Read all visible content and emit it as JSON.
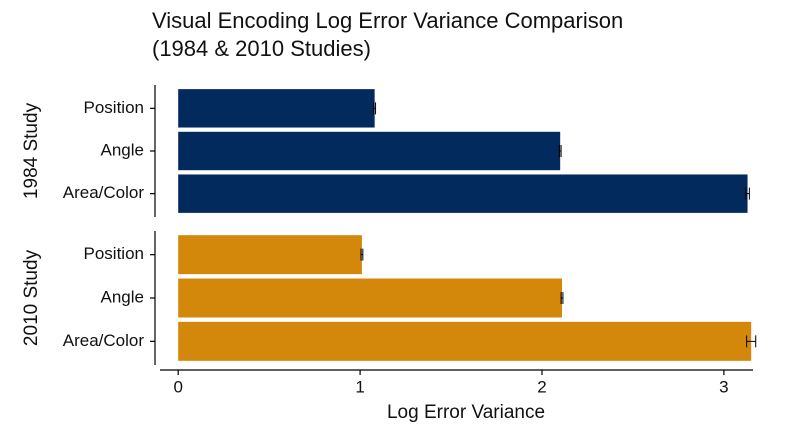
{
  "chart_data": {
    "type": "bar",
    "orientation": "horizontal",
    "title": [
      "Visual Encoding Log Error Variance Comparison",
      "(1984 & 2010 Studies)"
    ],
    "x_label": "Log Error Variance",
    "categories": [
      "Position",
      "Angle",
      "Area/Color"
    ],
    "series": [
      {
        "name": "1984 Study",
        "color": "#022a5c",
        "values": [
          1.08,
          2.1,
          3.13
        ],
        "errors": [
          0.005,
          0.005,
          0.01
        ]
      },
      {
        "name": "2010 Study",
        "color": "#d4880b",
        "values": [
          1.01,
          2.11,
          3.15
        ],
        "errors": [
          0.005,
          0.005,
          0.025
        ]
      }
    ],
    "xlim": [
      -0.1,
      3.16
    ],
    "xticks": [
      0,
      1,
      2,
      3
    ],
    "grid": false
  }
}
